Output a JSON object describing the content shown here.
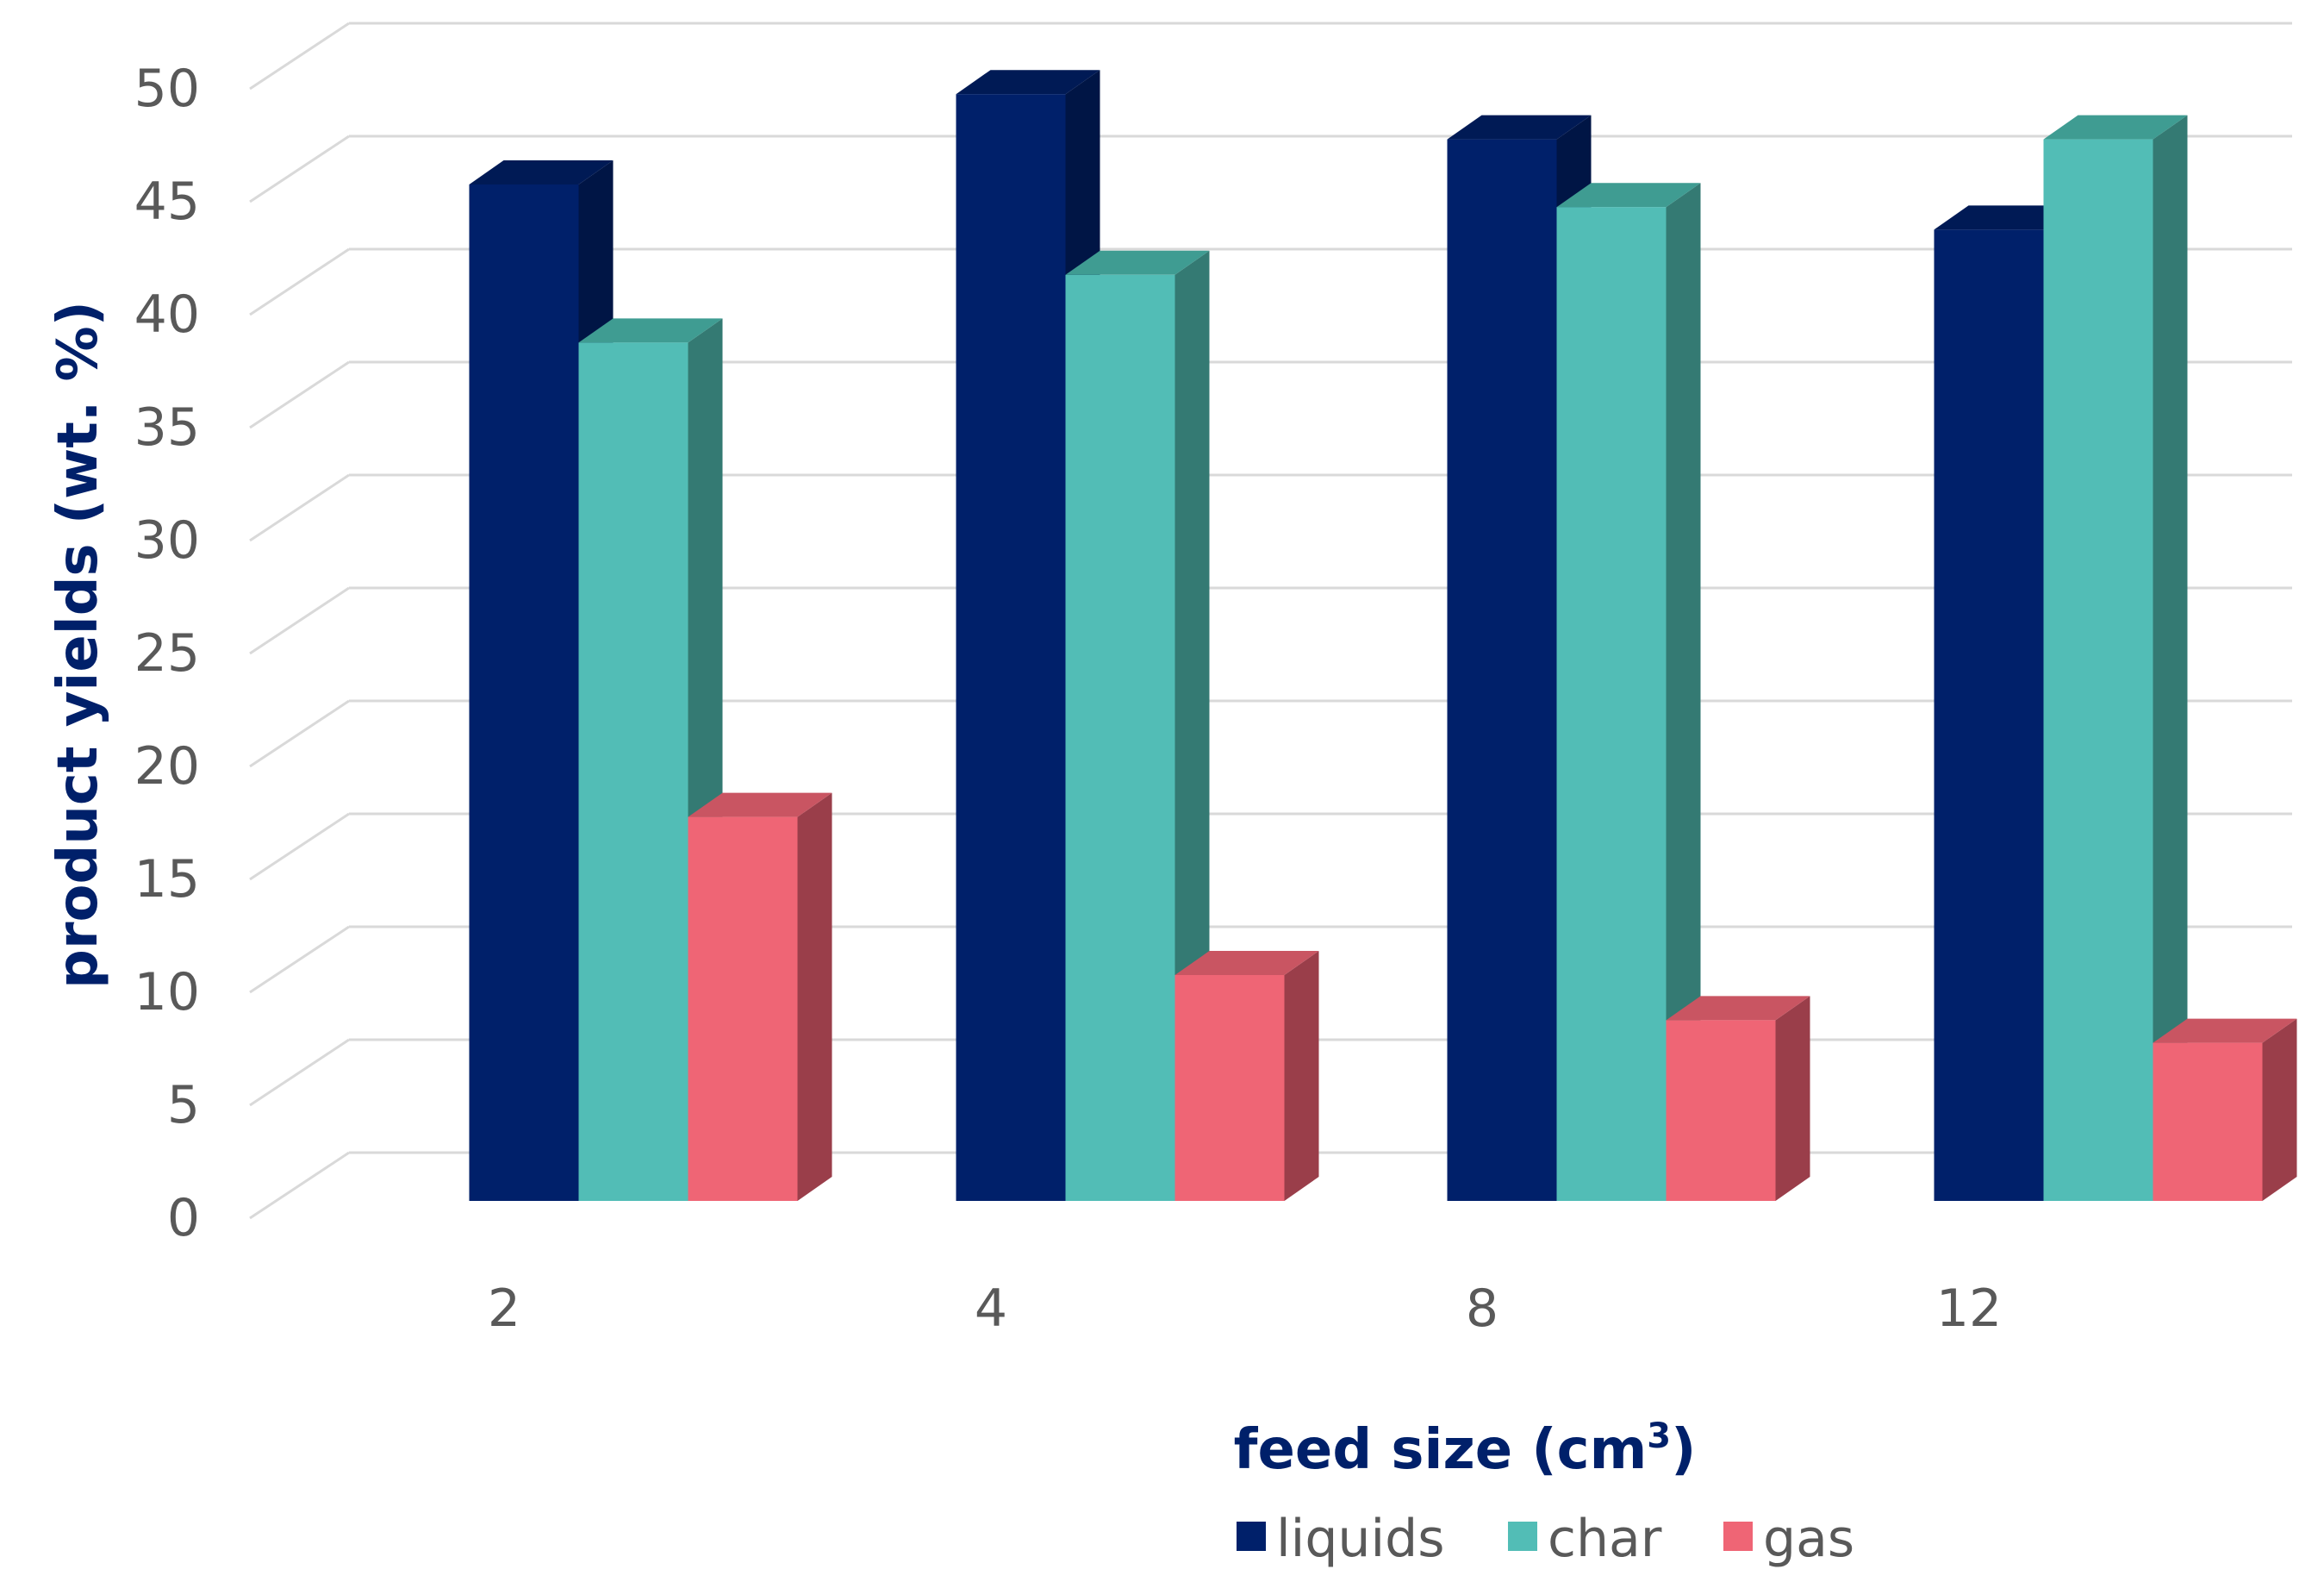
{
  "chart_data": {
    "type": "bar",
    "style": "3d-clustered-column",
    "title": "",
    "xlabel": "feed size (cm",
    "xlabel_superscript": "3",
    "xlabel_suffix": ")",
    "ylabel": "product yields (wt. %)",
    "ylim": [
      0,
      50
    ],
    "ytick_step": 5,
    "yticks": [
      "0",
      "5",
      "10",
      "15",
      "20",
      "25",
      "30",
      "35",
      "40",
      "45",
      "50"
    ],
    "categories": [
      "2",
      "4",
      "8",
      "12"
    ],
    "series": [
      {
        "name": "liquids",
        "values": [
          45,
          49,
          47,
          43
        ]
      },
      {
        "name": "char",
        "values": [
          38,
          41,
          44,
          47
        ]
      },
      {
        "name": "gas",
        "values": [
          17,
          10,
          8,
          7
        ]
      }
    ],
    "legend_position": "bottom",
    "grid": true
  },
  "colors": {
    "liquids": {
      "front": "#00206a",
      "side": "#001545",
      "top": "#001a55"
    },
    "char": {
      "front": "#52bdb6",
      "side": "#347a73",
      "top": "#3f9c92"
    },
    "gas": {
      "front": "#ef6575",
      "side": "#9a3e4a",
      "top": "#c95562"
    },
    "grid": "#d9d9d9",
    "axis_title": "#00206a",
    "tick": "#595959"
  }
}
